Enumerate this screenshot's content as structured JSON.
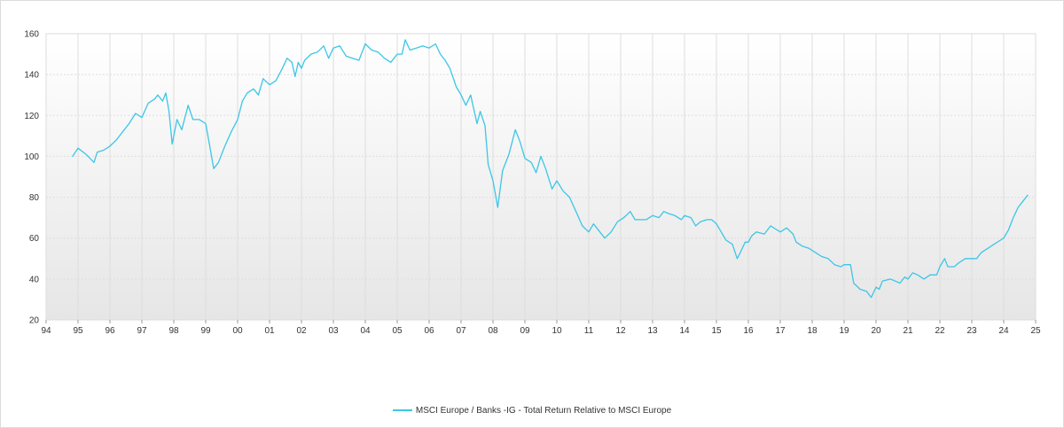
{
  "chart_data": {
    "type": "line",
    "title": "",
    "xlabel": "",
    "ylabel": "",
    "x_tick_labels": [
      "94",
      "95",
      "96",
      "97",
      "98",
      "99",
      "00",
      "01",
      "02",
      "03",
      "04",
      "05",
      "06",
      "07",
      "08",
      "09",
      "10",
      "11",
      "12",
      "13",
      "14",
      "15",
      "16",
      "17",
      "18",
      "19",
      "20",
      "21",
      "22",
      "23",
      "24",
      "25"
    ],
    "y_tick_labels": [
      "20",
      "40",
      "60",
      "80",
      "100",
      "120",
      "140",
      "160"
    ],
    "xlim": [
      1994,
      2025
    ],
    "ylim": [
      20,
      160
    ],
    "grid": true,
    "legend_position": "bottom-center",
    "colors": {
      "series": "#3cc6e6",
      "grid": "#dddddd",
      "plot_bg_top": "#ffffff",
      "plot_bg_bottom": "#e6e6e6"
    },
    "series": [
      {
        "name": "MSCI Europe / Banks -IG - Total Return Relative to MSCI Europe",
        "points": [
          [
            1994.83,
            100
          ],
          [
            1995.0,
            104
          ],
          [
            1995.25,
            101
          ],
          [
            1995.5,
            97
          ],
          [
            1995.6,
            102
          ],
          [
            1995.8,
            103
          ],
          [
            1996.0,
            105
          ],
          [
            1996.2,
            108
          ],
          [
            1996.4,
            112
          ],
          [
            1996.6,
            116
          ],
          [
            1996.8,
            121
          ],
          [
            1997.0,
            119
          ],
          [
            1997.2,
            126
          ],
          [
            1997.4,
            128
          ],
          [
            1997.5,
            130
          ],
          [
            1997.65,
            127
          ],
          [
            1997.75,
            131
          ],
          [
            1997.85,
            122
          ],
          [
            1997.95,
            106
          ],
          [
            1998.1,
            118
          ],
          [
            1998.25,
            113
          ],
          [
            1998.45,
            125
          ],
          [
            1998.6,
            118
          ],
          [
            1998.8,
            118
          ],
          [
            1999.0,
            116
          ],
          [
            1999.15,
            103
          ],
          [
            1999.25,
            94
          ],
          [
            1999.4,
            97
          ],
          [
            1999.6,
            105
          ],
          [
            1999.8,
            112
          ],
          [
            2000.0,
            118
          ],
          [
            2000.15,
            127
          ],
          [
            2000.3,
            131
          ],
          [
            2000.5,
            133
          ],
          [
            2000.65,
            130
          ],
          [
            2000.8,
            138
          ],
          [
            2001.0,
            135
          ],
          [
            2001.2,
            137
          ],
          [
            2001.4,
            143
          ],
          [
            2001.55,
            148
          ],
          [
            2001.7,
            146
          ],
          [
            2001.8,
            139
          ],
          [
            2001.9,
            146
          ],
          [
            2002.0,
            143
          ],
          [
            2002.1,
            147
          ],
          [
            2002.3,
            150
          ],
          [
            2002.5,
            151
          ],
          [
            2002.7,
            154
          ],
          [
            2002.85,
            148
          ],
          [
            2003.0,
            153
          ],
          [
            2003.2,
            154
          ],
          [
            2003.4,
            149
          ],
          [
            2003.6,
            148
          ],
          [
            2003.8,
            147
          ],
          [
            2004.0,
            155
          ],
          [
            2004.2,
            152
          ],
          [
            2004.4,
            151
          ],
          [
            2004.6,
            148
          ],
          [
            2004.8,
            146
          ],
          [
            2005.0,
            150
          ],
          [
            2005.15,
            150
          ],
          [
            2005.25,
            157
          ],
          [
            2005.4,
            152
          ],
          [
            2005.6,
            153
          ],
          [
            2005.8,
            154
          ],
          [
            2006.0,
            153
          ],
          [
            2006.2,
            155
          ],
          [
            2006.35,
            150
          ],
          [
            2006.5,
            147
          ],
          [
            2006.65,
            143
          ],
          [
            2006.85,
            134
          ],
          [
            2007.0,
            130
          ],
          [
            2007.15,
            125
          ],
          [
            2007.3,
            130
          ],
          [
            2007.5,
            116
          ],
          [
            2007.6,
            122
          ],
          [
            2007.75,
            115
          ],
          [
            2007.85,
            96
          ],
          [
            2008.0,
            88
          ],
          [
            2008.15,
            75
          ],
          [
            2008.3,
            93
          ],
          [
            2008.5,
            101
          ],
          [
            2008.7,
            113
          ],
          [
            2008.85,
            107
          ],
          [
            2009.0,
            99
          ],
          [
            2009.2,
            97
          ],
          [
            2009.35,
            92
          ],
          [
            2009.5,
            100
          ],
          [
            2009.65,
            94
          ],
          [
            2009.85,
            84
          ],
          [
            2010.0,
            88
          ],
          [
            2010.2,
            83
          ],
          [
            2010.4,
            80
          ],
          [
            2010.6,
            73
          ],
          [
            2010.8,
            66
          ],
          [
            2011.0,
            63
          ],
          [
            2011.15,
            67
          ],
          [
            2011.35,
            63
          ],
          [
            2011.5,
            60
          ],
          [
            2011.7,
            63
          ],
          [
            2011.9,
            68
          ],
          [
            2012.1,
            70
          ],
          [
            2012.3,
            73
          ],
          [
            2012.45,
            69
          ],
          [
            2012.6,
            69
          ],
          [
            2012.8,
            69
          ],
          [
            2013.0,
            71
          ],
          [
            2013.2,
            70
          ],
          [
            2013.35,
            73
          ],
          [
            2013.5,
            72
          ],
          [
            2013.7,
            71
          ],
          [
            2013.9,
            69
          ],
          [
            2014.0,
            71
          ],
          [
            2014.2,
            70
          ],
          [
            2014.35,
            66
          ],
          [
            2014.5,
            68
          ],
          [
            2014.7,
            69
          ],
          [
            2014.85,
            69
          ],
          [
            2015.0,
            67
          ],
          [
            2015.15,
            63
          ],
          [
            2015.3,
            59
          ],
          [
            2015.5,
            57
          ],
          [
            2015.65,
            50
          ],
          [
            2015.75,
            53
          ],
          [
            2015.9,
            58
          ],
          [
            2016.0,
            58
          ],
          [
            2016.1,
            61
          ],
          [
            2016.25,
            63
          ],
          [
            2016.5,
            62
          ],
          [
            2016.7,
            66
          ],
          [
            2016.9,
            64
          ],
          [
            2017.0,
            63
          ],
          [
            2017.2,
            65
          ],
          [
            2017.4,
            62
          ],
          [
            2017.5,
            58
          ],
          [
            2017.7,
            56
          ],
          [
            2017.9,
            55
          ],
          [
            2018.1,
            53
          ],
          [
            2018.3,
            51
          ],
          [
            2018.5,
            50
          ],
          [
            2018.7,
            47
          ],
          [
            2018.9,
            46
          ],
          [
            2019.0,
            47
          ],
          [
            2019.2,
            47
          ],
          [
            2019.3,
            38
          ],
          [
            2019.5,
            35
          ],
          [
            2019.7,
            34
          ],
          [
            2019.85,
            31
          ],
          [
            2020.0,
            36
          ],
          [
            2020.1,
            35
          ],
          [
            2020.2,
            39
          ],
          [
            2020.45,
            40
          ],
          [
            2020.6,
            39
          ],
          [
            2020.75,
            38
          ],
          [
            2020.9,
            41
          ],
          [
            2021.0,
            40
          ],
          [
            2021.15,
            43
          ],
          [
            2021.3,
            42
          ],
          [
            2021.5,
            40
          ],
          [
            2021.7,
            42
          ],
          [
            2021.9,
            42
          ],
          [
            2022.0,
            46
          ],
          [
            2022.15,
            50
          ],
          [
            2022.25,
            46
          ],
          [
            2022.45,
            46
          ],
          [
            2022.6,
            48
          ],
          [
            2022.8,
            50
          ],
          [
            2023.0,
            50
          ],
          [
            2023.15,
            50
          ],
          [
            2023.3,
            53
          ],
          [
            2023.5,
            55
          ],
          [
            2023.7,
            57
          ],
          [
            2023.9,
            59
          ],
          [
            2024.0,
            60
          ],
          [
            2024.15,
            64
          ],
          [
            2024.3,
            70
          ],
          [
            2024.45,
            75
          ],
          [
            2024.6,
            78
          ],
          [
            2024.75,
            81
          ]
        ]
      }
    ]
  }
}
